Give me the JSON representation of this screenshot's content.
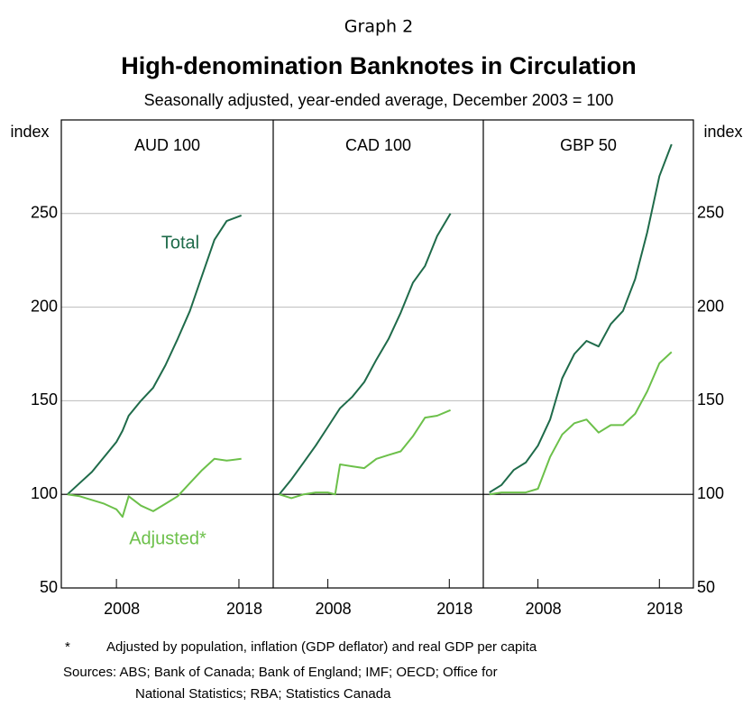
{
  "header": {
    "graph": "Graph 2",
    "title": "High-denomination Banknotes in Circulation",
    "subtitle": "Seasonally adjusted, year-ended average, December 2003 = 100"
  },
  "chart_data": [
    {
      "type": "line",
      "title": "AUD 100",
      "ylabel": "index",
      "x": [
        2004,
        2005,
        2006,
        2007,
        2008,
        2008.5,
        2009,
        2010,
        2011,
        2012,
        2013,
        2014,
        2015,
        2016,
        2017,
        2018.2
      ],
      "series": [
        {
          "name": "Total",
          "color": "#1f6b4a",
          "values": [
            100,
            106,
            112,
            120,
            128,
            134,
            142,
            150,
            157,
            169,
            183,
            198,
            217,
            236,
            246,
            249
          ]
        },
        {
          "name": "Adjusted*",
          "color": "#6cc04a",
          "values": [
            100,
            99,
            97,
            95,
            92,
            88,
            99,
            94,
            91,
            95,
            99,
            106,
            113,
            119,
            118,
            119
          ]
        }
      ],
      "xlim": [
        2003.5,
        2020.8
      ],
      "xticks": [
        2008,
        2018
      ],
      "ylim": [
        50,
        300
      ],
      "yticks": [
        50,
        100,
        150,
        200,
        250
      ],
      "grid": true,
      "hline": 100
    },
    {
      "type": "line",
      "title": "CAD 100",
      "x": [
        2004,
        2005,
        2006,
        2007,
        2008,
        2008.6,
        2009,
        2010,
        2011,
        2012,
        2013,
        2014,
        2015,
        2016,
        2017,
        2018.1
      ],
      "series": [
        {
          "color": "#1f6b4a",
          "values": [
            100,
            108,
            117,
            126,
            136,
            142,
            146,
            152,
            160,
            172,
            183,
            197,
            213,
            222,
            238,
            250
          ]
        },
        {
          "color": "#6cc04a",
          "values": [
            100,
            98,
            100,
            101,
            101,
            100,
            116,
            115,
            114,
            119,
            121,
            123,
            131,
            141,
            142,
            145
          ]
        }
      ],
      "xlim": [
        2003.5,
        2020.8
      ],
      "xticks": [
        2008,
        2018
      ],
      "ylim": [
        50,
        300
      ],
      "yticks": [
        50,
        100,
        150,
        200,
        250
      ],
      "grid": true,
      "hline": 100
    },
    {
      "type": "line",
      "title": "GBP 50",
      "y2label": "index",
      "x": [
        2004,
        2005,
        2006,
        2007,
        2008,
        2009,
        2010,
        2011,
        2012,
        2013,
        2014,
        2015,
        2016,
        2017,
        2018,
        2019
      ],
      "series": [
        {
          "color": "#1f6b4a",
          "values": [
            101,
            105,
            113,
            117,
            126,
            140,
            162,
            175,
            182,
            179,
            191,
            198,
            215,
            240,
            270,
            287
          ]
        },
        {
          "color": "#6cc04a",
          "values": [
            100,
            101,
            101,
            101,
            103,
            120,
            132,
            138,
            140,
            133,
            137,
            137,
            143,
            155,
            170,
            176
          ]
        }
      ],
      "xlim": [
        2003.5,
        2020.8
      ],
      "xticks": [
        2008,
        2018
      ],
      "ylim": [
        50,
        300
      ],
      "yticks": [
        50,
        100,
        150,
        200,
        250
      ],
      "y2lim": [
        50,
        300
      ],
      "y2ticks": [
        50,
        100,
        150,
        200,
        250
      ],
      "grid": true,
      "hline": 100
    }
  ],
  "notes": [
    "*",
    "Adjusted by population, inflation (GDP deflator) and real GDP per capita",
    "Sources: ABS; Bank of Canada; Bank of England; IMF; OECD; Office for",
    "National Statistics; RBA; Statistics Canada"
  ]
}
